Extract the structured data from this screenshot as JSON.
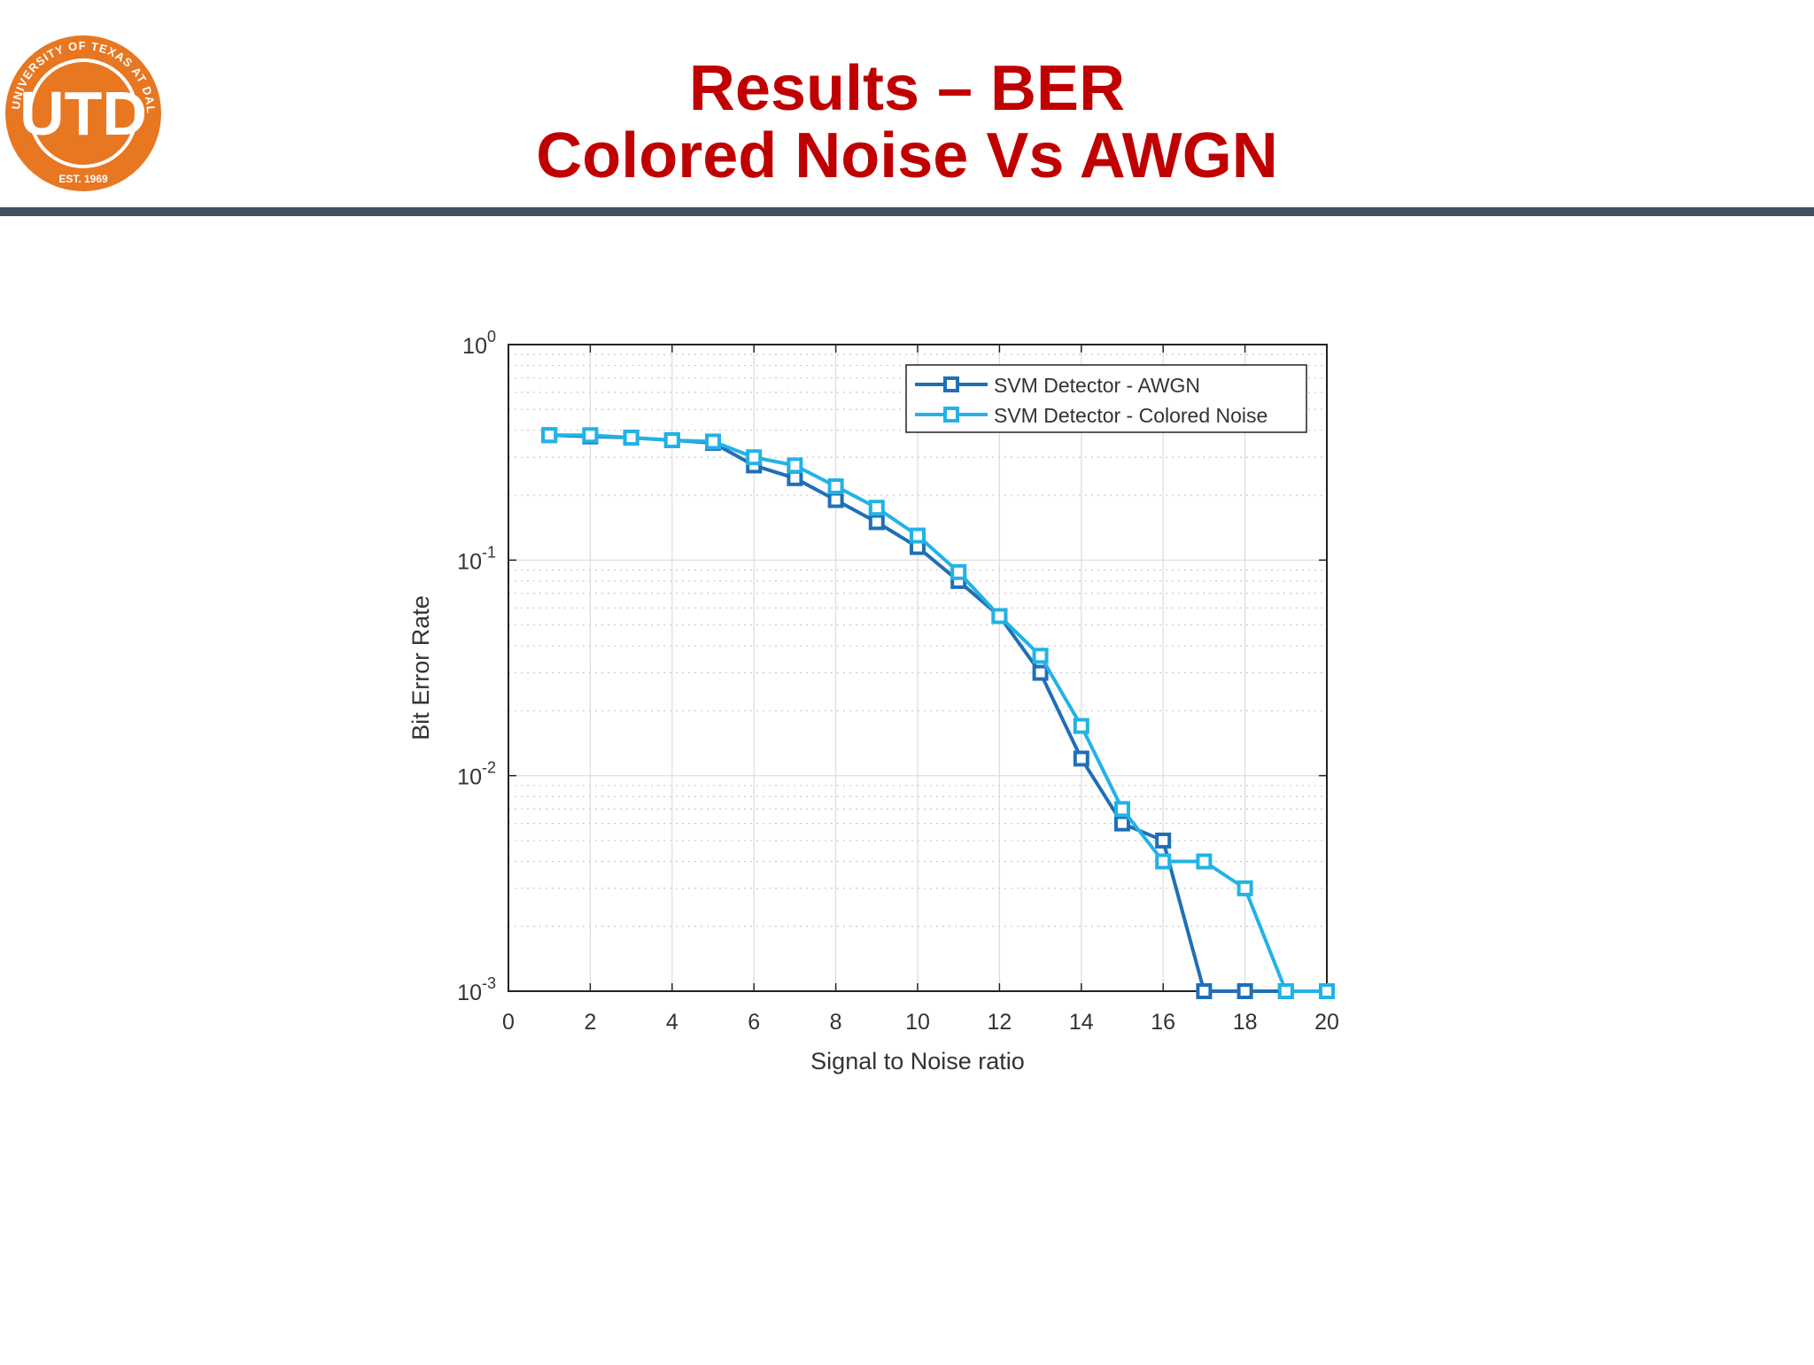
{
  "slide": {
    "title_line1": "Results – BER",
    "title_line2": "Colored Noise Vs AWGN"
  },
  "logo": {
    "monogram": "UTD",
    "ring_text": "THE UNIVERSITY OF TEXAS AT DALLAS",
    "established": "EST. 1969",
    "color": "#e87722"
  },
  "colors": {
    "title": "#c00000",
    "divider": "#3f5063",
    "awgn": "#1f6fb7",
    "colored": "#22b2e6"
  },
  "chart_data": {
    "type": "line",
    "xlabel": "Signal to Noise ratio",
    "ylabel": "Bit Error Rate",
    "xlim": [
      0,
      20
    ],
    "ylim": [
      0.001,
      1
    ],
    "yscale": "log",
    "grid": true,
    "x_ticks": [
      "0",
      "2",
      "4",
      "6",
      "8",
      "10",
      "12",
      "14",
      "16",
      "18",
      "20"
    ],
    "y_ticks": [
      {
        "base": "10",
        "exp": "0"
      },
      {
        "base": "10",
        "exp": "-1"
      },
      {
        "base": "10",
        "exp": "-2"
      },
      {
        "base": "10",
        "exp": "-3"
      }
    ],
    "legend_position": "top-right",
    "series": [
      {
        "name": "SVM Detector - AWGN",
        "color": "#1f6fb7",
        "marker": "square",
        "x": [
          1,
          2,
          3,
          4,
          5,
          6,
          7,
          8,
          9,
          10,
          11,
          12,
          13,
          14,
          15,
          16,
          17,
          18,
          19,
          20
        ],
        "y": [
          0.38,
          0.375,
          0.37,
          0.36,
          0.35,
          0.275,
          0.24,
          0.19,
          0.15,
          0.115,
          0.08,
          0.055,
          0.03,
          0.012,
          0.006,
          0.005,
          0.001,
          0.001,
          0.001,
          0.001
        ]
      },
      {
        "name": "SVM Detector - Colored Noise",
        "color": "#22b2e6",
        "marker": "square",
        "x": [
          1,
          2,
          3,
          4,
          5,
          6,
          7,
          8,
          9,
          10,
          11,
          12,
          13,
          14,
          15,
          16,
          17,
          18,
          19,
          20
        ],
        "y": [
          0.38,
          0.38,
          0.37,
          0.36,
          0.355,
          0.3,
          0.275,
          0.22,
          0.175,
          0.13,
          0.088,
          0.055,
          0.036,
          0.017,
          0.007,
          0.004,
          0.004,
          0.003,
          0.001,
          0.001
        ]
      }
    ]
  }
}
